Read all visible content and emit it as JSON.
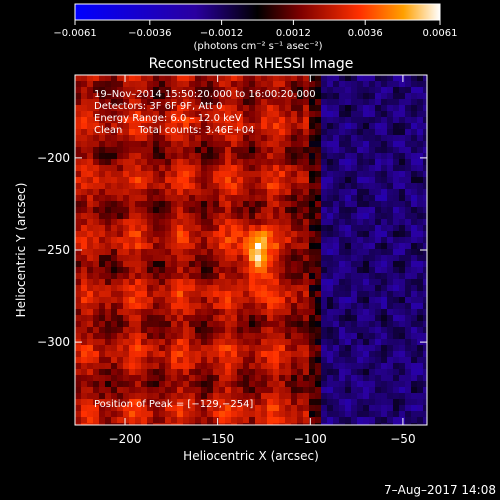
{
  "chart_data": {
    "type": "heatmap",
    "title": "Reconstructed RHESSI Image",
    "xlabel": "Heliocentric X (arcsec)",
    "ylabel": "Heliocentric Y (arcsec)",
    "xlim": [
      -227,
      -37
    ],
    "ylim": [
      -345,
      -155
    ],
    "x_ticks": [
      -200,
      -150,
      -100,
      -50
    ],
    "y_ticks": [
      -200,
      -250,
      -300
    ],
    "x_tick_labels": [
      "−200",
      "−150",
      "−100",
      "−50"
    ],
    "y_tick_labels": [
      "−200",
      "−250",
      "−300"
    ],
    "colorbar": {
      "range": [
        -0.0061,
        0.0061
      ],
      "ticks": [
        -0.0061,
        -0.0036,
        -0.0012,
        0.0012,
        0.0036,
        0.0061
      ],
      "tick_labels": [
        "−0.0061",
        "−0.0036",
        "−0.0012",
        "0.0012",
        "0.0036",
        "0.0061"
      ],
      "unit_label": "(photons cm⁻² s⁻¹ asec⁻²)",
      "colors": [
        "#0000ff",
        "#2a00a0",
        "#000000",
        "#800000",
        "#ff3000",
        "#ffa000",
        "#ffffff"
      ]
    },
    "annotations": [
      "19–Nov–2014 15:50:20.000 to 16:00:20.000",
      "Detectors: 3F 6F 9F, Att 0",
      "Energy Range: 6.0 – 12.0 keV",
      "Clean     Total counts: 3.46E+04"
    ],
    "peak_label": "Position of Peak = [−129,−254]",
    "peak": [
      -129,
      -254
    ],
    "grid": false
  },
  "footer_date": "7–Aug–2017 14:08"
}
